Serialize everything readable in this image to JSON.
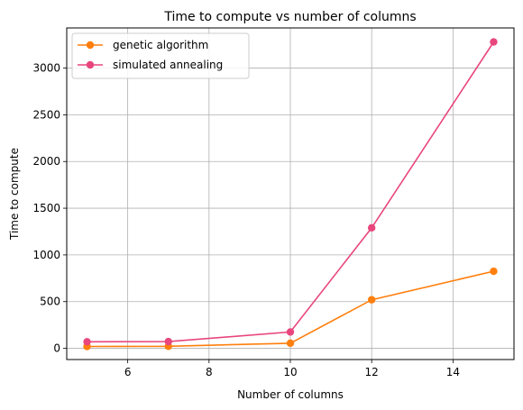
{
  "chart_data": {
    "type": "line",
    "title": "Time to compute vs number of columns",
    "xlabel": "Number of columns",
    "ylabel": "Time to compute",
    "xlim": [
      4.5,
      15.5
    ],
    "ylim": [
      -120,
      3430
    ],
    "xticks": [
      6,
      8,
      10,
      12,
      14
    ],
    "yticks": [
      0,
      500,
      1000,
      1500,
      2000,
      2500,
      3000
    ],
    "grid": true,
    "legend_position": "top-left",
    "x": [
      5,
      7,
      10,
      12,
      15
    ],
    "series": [
      {
        "name": "genetic algorithm",
        "color": "#ff7f0e",
        "values": [
          20,
          22,
          55,
          520,
          825
        ]
      },
      {
        "name": "simulated annealing",
        "color": "#e8467c",
        "values": [
          70,
          72,
          175,
          1290,
          3280
        ]
      }
    ]
  }
}
